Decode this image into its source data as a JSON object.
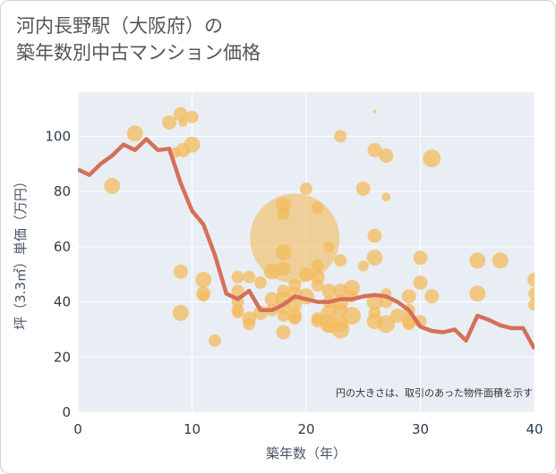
{
  "header": {
    "title_line1": "河内長野駅（大阪府）の",
    "title_line2": "築年数別中古マンション価格"
  },
  "colors": {
    "plot_bg": "#e9eef5",
    "grid": "#ffffff",
    "bubble": "#f3bb5c",
    "line": "#d4705a"
  },
  "chart_data": {
    "type": "scatter",
    "xlabel": "築年数（年）",
    "ylabel": "坪（3.3㎡）単価（万円）",
    "xlim": [
      0,
      40
    ],
    "ylim": [
      0,
      116
    ],
    "x_ticks": [
      "0",
      "10",
      "20",
      "30",
      "40"
    ],
    "y_ticks": [
      "0",
      "20",
      "40",
      "60",
      "80",
      "100"
    ],
    "x_tick_values": [
      0,
      10,
      20,
      30,
      40
    ],
    "y_tick_values": [
      0,
      20,
      40,
      60,
      80,
      100
    ],
    "grid": true,
    "annotation": "円の大きさは、取引のあった物件面積を示す",
    "bubbles": [
      [
        3,
        82,
        9
      ],
      [
        5,
        101,
        9
      ],
      [
        8,
        105,
        8
      ],
      [
        8.5,
        94,
        6
      ],
      [
        9,
        108,
        8
      ],
      [
        9.2,
        105,
        5
      ],
      [
        9.2,
        95,
        8
      ],
      [
        10,
        107,
        7
      ],
      [
        10,
        97,
        9
      ],
      [
        9,
        51,
        8
      ],
      [
        9,
        36,
        9
      ],
      [
        11,
        48,
        9
      ],
      [
        11,
        43,
        8
      ],
      [
        11,
        42,
        6
      ],
      [
        12,
        26,
        7
      ],
      [
        14,
        49,
        7
      ],
      [
        14,
        44,
        7
      ],
      [
        14,
        40,
        7
      ],
      [
        14,
        37,
        7
      ],
      [
        14,
        36,
        6
      ],
      [
        15,
        49,
        7
      ],
      [
        15,
        34,
        8
      ],
      [
        15,
        32,
        7
      ],
      [
        16,
        47,
        7
      ],
      [
        16,
        36,
        8
      ],
      [
        17,
        51,
        9
      ],
      [
        17,
        41,
        8
      ],
      [
        17,
        37,
        7
      ],
      [
        18,
        75,
        9
      ],
      [
        18,
        72,
        7
      ],
      [
        18,
        58,
        9
      ],
      [
        18,
        52,
        8
      ],
      [
        18,
        44,
        7
      ],
      [
        18,
        41,
        9
      ],
      [
        18,
        38,
        8
      ],
      [
        18,
        35,
        7
      ],
      [
        18,
        29,
        8
      ],
      [
        19,
        63,
        50
      ],
      [
        19,
        46,
        7
      ],
      [
        19,
        43,
        8
      ],
      [
        19,
        39,
        8
      ],
      [
        19,
        35,
        8
      ],
      [
        19,
        34,
        7
      ],
      [
        20,
        81,
        7
      ],
      [
        20,
        50,
        8
      ],
      [
        20,
        42,
        9
      ],
      [
        21,
        74,
        7
      ],
      [
        21,
        53,
        7
      ],
      [
        21,
        49,
        8
      ],
      [
        21,
        46,
        7
      ],
      [
        21,
        34,
        7
      ],
      [
        21,
        33,
        7
      ],
      [
        22,
        60,
        6
      ],
      [
        22,
        44,
        8
      ],
      [
        22,
        40,
        7
      ],
      [
        22,
        36,
        9
      ],
      [
        22,
        32,
        10
      ],
      [
        22,
        31,
        7
      ],
      [
        23,
        100,
        7
      ],
      [
        23,
        55,
        7
      ],
      [
        23,
        44,
        8
      ],
      [
        23,
        40,
        9
      ],
      [
        23,
        37,
        8
      ],
      [
        23,
        32,
        9
      ],
      [
        23,
        30,
        10
      ],
      [
        24,
        45,
        9
      ],
      [
        24,
        42,
        7
      ],
      [
        24,
        35,
        10
      ],
      [
        25,
        81,
        8
      ],
      [
        25,
        53,
        6
      ],
      [
        26,
        95,
        8
      ],
      [
        26,
        64,
        8
      ],
      [
        26,
        56,
        9
      ],
      [
        26,
        40,
        9
      ],
      [
        26,
        36,
        7
      ],
      [
        26,
        33,
        9
      ],
      [
        27,
        93,
        8
      ],
      [
        27,
        78,
        5
      ],
      [
        27,
        43,
        6
      ],
      [
        27,
        40,
        7
      ],
      [
        27,
        32,
        10
      ],
      [
        28,
        35,
        8
      ],
      [
        29,
        42,
        8
      ],
      [
        29,
        37,
        7
      ],
      [
        29,
        33,
        8
      ],
      [
        29,
        32,
        7
      ],
      [
        30,
        56,
        8
      ],
      [
        30,
        47,
        8
      ],
      [
        30,
        33,
        7
      ],
      [
        31,
        92,
        10
      ],
      [
        31,
        42,
        8
      ],
      [
        35,
        55,
        9
      ],
      [
        35,
        43,
        9
      ],
      [
        37,
        55,
        9
      ],
      [
        40,
        48,
        8
      ],
      [
        40,
        43,
        7
      ],
      [
        40,
        39,
        7
      ],
      [
        26,
        109,
        2
      ]
    ],
    "line": {
      "x": [
        0,
        1,
        2,
        3,
        4,
        5,
        6,
        7,
        8,
        9,
        10,
        11,
        12,
        13,
        14,
        15,
        16,
        17,
        18,
        19,
        20,
        21,
        22,
        23,
        24,
        25,
        26,
        27,
        28,
        29,
        30,
        31,
        32,
        33,
        34,
        35,
        36,
        37,
        38,
        39,
        40
      ],
      "y": [
        88,
        86,
        90,
        93,
        97,
        95,
        99,
        95,
        95.5,
        83,
        73,
        68,
        57,
        43,
        41,
        44,
        37,
        37,
        39,
        42,
        41,
        40,
        40,
        41,
        41,
        42,
        42.5,
        42,
        40,
        37,
        31,
        29.5,
        29,
        30,
        26,
        35,
        33.5,
        31.5,
        30.5,
        30.5,
        23
      ]
    }
  }
}
